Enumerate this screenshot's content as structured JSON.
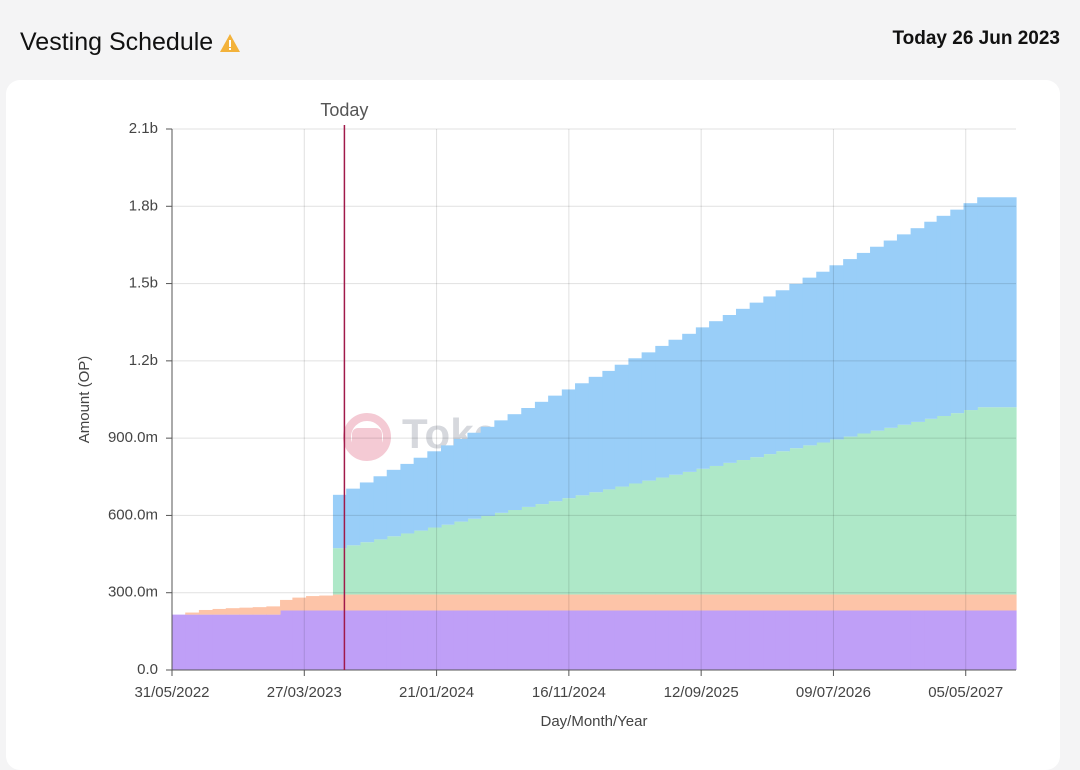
{
  "header": {
    "title": "Vesting Schedule",
    "today": "Today 26 Jun 2023"
  },
  "chart_data": {
    "type": "stacked-step-area",
    "ylabel": "Amount (OP)",
    "xlabel": "Day/Month/Year",
    "watermark": "TokenUnlocks.",
    "today_marker": {
      "x": "2023-06-26",
      "label": "Today",
      "color": "#a0194a"
    },
    "xlim": [
      "2022-05-31",
      "2027-08-27"
    ],
    "xticks": [
      {
        "value": "2022-05-31",
        "label": "31/05/2022"
      },
      {
        "value": "2023-03-27",
        "label": "27/03/2023"
      },
      {
        "value": "2024-01-21",
        "label": "21/01/2024"
      },
      {
        "value": "2024-11-16",
        "label": "16/11/2024"
      },
      {
        "value": "2025-09-12",
        "label": "12/09/2025"
      },
      {
        "value": "2026-07-09",
        "label": "09/07/2026"
      },
      {
        "value": "2027-05-05",
        "label": "05/05/2027"
      }
    ],
    "ylim": [
      0,
      2100
    ],
    "yticks": [
      {
        "value": 0,
        "label": "0.0"
      },
      {
        "value": 300,
        "label": "300.0m"
      },
      {
        "value": 600,
        "label": "600.0m"
      },
      {
        "value": 900,
        "label": "900.0m"
      },
      {
        "value": 1200,
        "label": "1.2b"
      },
      {
        "value": 1500,
        "label": "1.5b"
      },
      {
        "value": 1800,
        "label": "1.8b"
      },
      {
        "value": 2100,
        "label": "2.1b"
      }
    ],
    "grid": true,
    "x": [
      "2022-05-31",
      "2022-06-30",
      "2022-07-31",
      "2022-08-31",
      "2022-09-30",
      "2022-10-31",
      "2022-11-30",
      "2022-12-31",
      "2023-01-31",
      "2023-02-28",
      "2023-03-31",
      "2023-04-30",
      "2023-05-31",
      "2023-06-30",
      "2023-07-31",
      "2023-08-31",
      "2023-09-30",
      "2023-10-31",
      "2023-11-30",
      "2023-12-31",
      "2024-01-31",
      "2024-02-29",
      "2024-03-31",
      "2024-04-30",
      "2024-05-31",
      "2024-06-30",
      "2024-07-31",
      "2024-08-31",
      "2024-09-30",
      "2024-10-31",
      "2024-11-30",
      "2024-12-31",
      "2025-01-31",
      "2025-02-28",
      "2025-03-31",
      "2025-04-30",
      "2025-05-31",
      "2025-06-30",
      "2025-07-31",
      "2025-08-31",
      "2025-09-30",
      "2025-10-31",
      "2025-11-30",
      "2025-12-31",
      "2026-01-31",
      "2026-02-28",
      "2026-03-31",
      "2026-04-30",
      "2026-05-31",
      "2026-06-30",
      "2026-07-31",
      "2026-08-31",
      "2026-09-30",
      "2026-10-31",
      "2026-11-30",
      "2026-12-31",
      "2027-01-31",
      "2027-02-28",
      "2027-03-31",
      "2027-04-30",
      "2027-05-31"
    ],
    "series": [
      {
        "color": "#bf9ff7",
        "values": [
          215,
          215,
          215,
          215,
          215,
          215,
          215,
          215,
          231,
          231,
          231,
          231,
          231,
          231,
          231,
          231,
          231,
          231,
          231,
          231,
          231,
          231,
          231,
          231,
          231,
          231,
          231,
          231,
          231,
          231,
          231,
          231,
          231,
          231,
          231,
          231,
          231,
          231,
          231,
          231,
          231,
          231,
          231,
          231,
          231,
          231,
          231,
          231,
          231,
          231,
          231,
          231,
          231,
          231,
          231,
          231,
          231,
          231,
          231,
          231,
          231
        ]
      },
      {
        "color": "#fdc4a8",
        "values": [
          0,
          8,
          18,
          22,
          25,
          27,
          29,
          32,
          41,
          50,
          56,
          58,
          62,
          62,
          62,
          62,
          62,
          62,
          62,
          62,
          62,
          62,
          62,
          62,
          62,
          62,
          62,
          62,
          62,
          62,
          62,
          62,
          62,
          62,
          62,
          62,
          62,
          62,
          62,
          62,
          62,
          62,
          62,
          62,
          62,
          62,
          62,
          62,
          62,
          62,
          62,
          62,
          62,
          62,
          62,
          62,
          62,
          62,
          62,
          62,
          62
        ]
      },
      {
        "color": "#aee8c8",
        "values": [
          0,
          0,
          0,
          0,
          0,
          0,
          0,
          0,
          0,
          0,
          0,
          0,
          180,
          191,
          203,
          214,
          226,
          237,
          248,
          260,
          271,
          283,
          294,
          305,
          317,
          328,
          340,
          351,
          362,
          374,
          385,
          397,
          408,
          419,
          431,
          442,
          454,
          465,
          476,
          488,
          499,
          511,
          522,
          533,
          545,
          556,
          568,
          579,
          590,
          602,
          613,
          625,
          636,
          647,
          659,
          670,
          682,
          693,
          704,
          716,
          727
        ]
      },
      {
        "color": "#99cef8",
        "values": [
          0,
          0,
          0,
          0,
          0,
          0,
          0,
          0,
          0,
          0,
          0,
          0,
          207,
          220,
          232,
          245,
          258,
          270,
          283,
          296,
          308,
          321,
          334,
          346,
          359,
          372,
          384,
          397,
          410,
          422,
          435,
          448,
          460,
          473,
          486,
          498,
          511,
          524,
          536,
          549,
          562,
          574,
          587,
          600,
          612,
          625,
          638,
          651,
          663,
          676,
          689,
          701,
          714,
          727,
          739,
          752,
          765,
          777,
          790,
          803,
          815
        ]
      }
    ]
  }
}
